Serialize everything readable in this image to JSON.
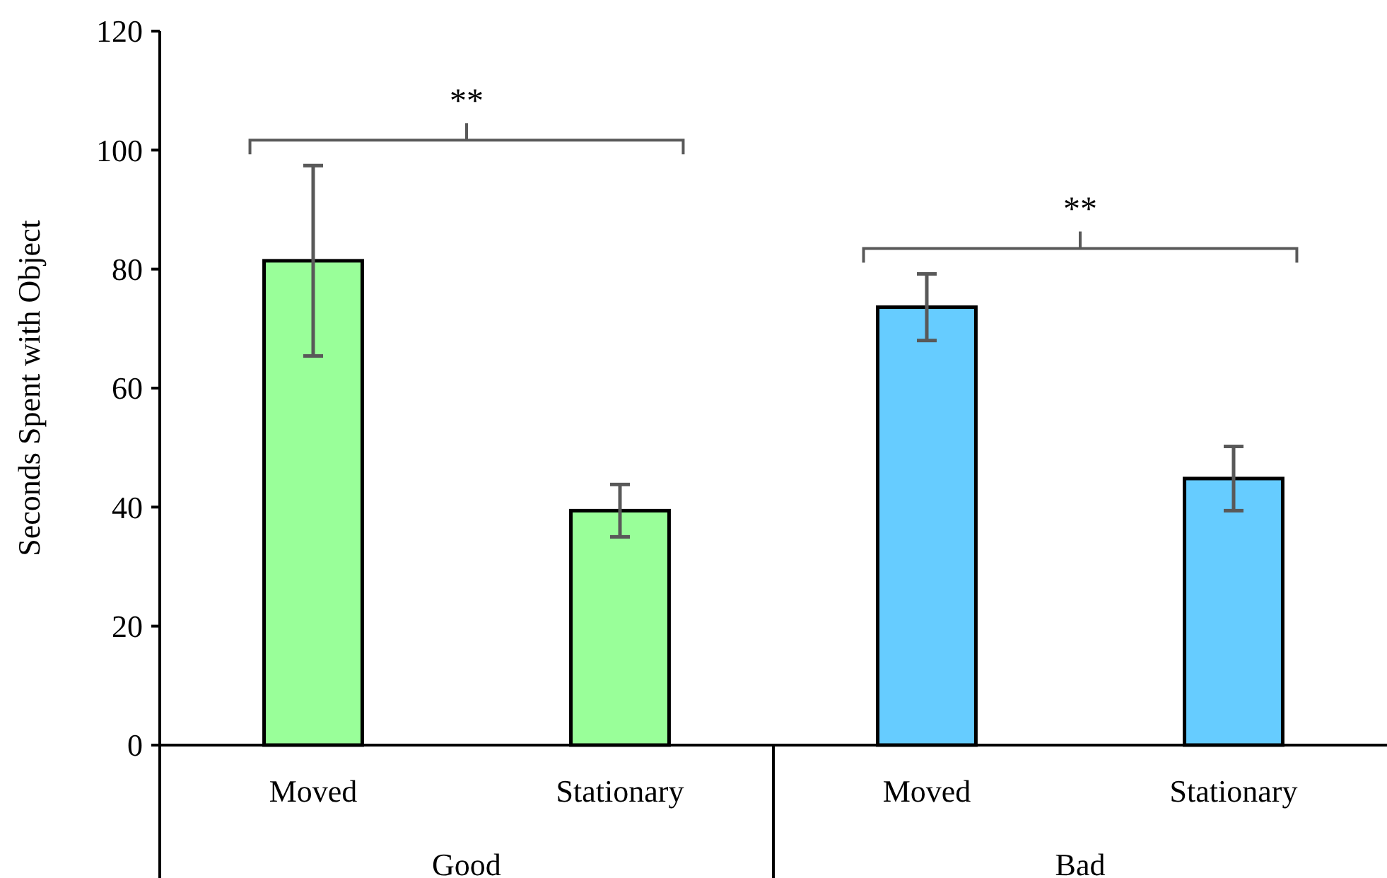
{
  "chart_data": {
    "type": "bar",
    "ylabel": "Seconds Spent with Object",
    "categories": [
      "Moved",
      "Stationary",
      "Moved",
      "Stationary"
    ],
    "values": [
      81.4,
      39.4,
      73.6,
      44.8
    ],
    "errors": [
      16,
      4.4,
      5.6,
      5.4
    ],
    "colors": [
      "#99ff99",
      "#99ff99",
      "#66ccff",
      "#66ccff"
    ],
    "ylim": [
      0,
      120
    ],
    "yticks": [
      0,
      20,
      40,
      60,
      80,
      100,
      120
    ],
    "annotations": [
      "**",
      "**",
      "Good",
      "Bad"
    ]
  }
}
